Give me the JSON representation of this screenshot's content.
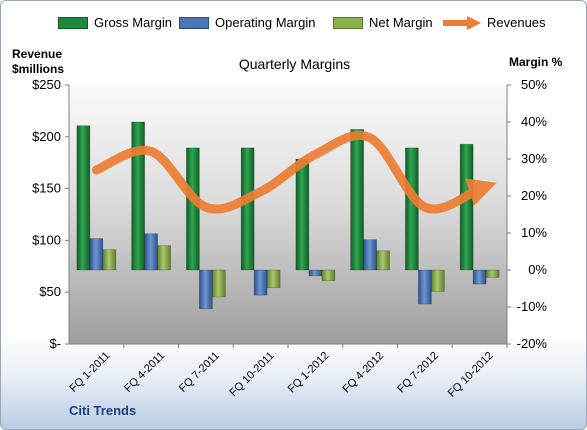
{
  "chart_data": {
    "type": "bar",
    "title": "Quarterly Margins",
    "left_axis_title": [
      "Revenue",
      "$millions"
    ],
    "right_axis_title": "Margin %",
    "categories": [
      "FQ 1-2011",
      "FQ 4-2011",
      "FQ 7-2011",
      "FQ 10-2011",
      "FQ 1-2012",
      "FQ 4-2012",
      "FQ 7-2012",
      "FQ 10-2012"
    ],
    "series": [
      {
        "name": "Gross Margin",
        "axis": "right",
        "color": "#1e8a3c",
        "values": [
          39,
          40,
          33,
          33,
          30,
          38,
          33,
          34
        ]
      },
      {
        "name": "Operating Margin",
        "axis": "right",
        "color": "#4a76b8",
        "values": [
          8.5,
          9.8,
          -10.5,
          -6.8,
          -1.6,
          8.2,
          -9.2,
          -3.8
        ]
      },
      {
        "name": "Net Margin",
        "axis": "right",
        "color": "#8db04e",
        "values": [
          5.5,
          6.6,
          -7.3,
          -4.8,
          -2.9,
          5.2,
          -5.8,
          -2.0
        ]
      },
      {
        "name": "Revenues",
        "axis": "left",
        "color": "#ed7d31",
        "type": "line",
        "values": [
          168,
          186,
          132,
          147,
          183,
          199,
          132,
          150
        ]
      }
    ],
    "left_axis": {
      "min": 0,
      "max": 250,
      "step": 50,
      "tick_labels": [
        "$-",
        "$50",
        "$100",
        "$150",
        "$200",
        "$250"
      ]
    },
    "right_axis": {
      "min": -20,
      "max": 50,
      "step": 10,
      "tick_labels": [
        "-20%",
        "-10%",
        "0%",
        "10%",
        "20%",
        "30%",
        "40%",
        "50%"
      ]
    },
    "legend_position": "top",
    "grid": false
  },
  "footer_note": "Citi Trends"
}
